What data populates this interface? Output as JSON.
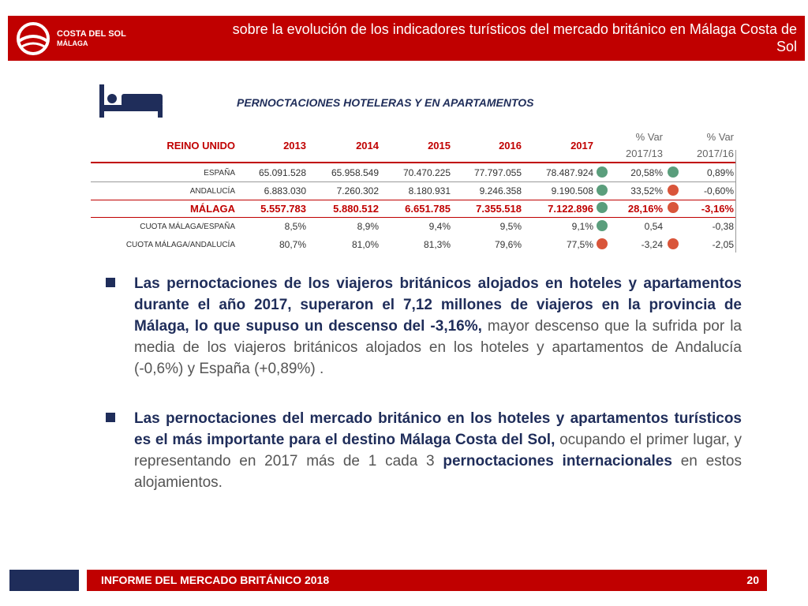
{
  "header": {
    "logo": {
      "line1": "COSTA DEL SOL",
      "line2": "MÁLAGA"
    },
    "title": "sobre la evolución de los indicadores turísticos del mercado británico en Málaga Costa de Sol"
  },
  "table": {
    "title": "PERNOCTACIONES HOTELERAS Y EN APARTAMENTOS",
    "columns": [
      "REINO UNIDO",
      "2013",
      "2014",
      "2015",
      "2016",
      "2017",
      [
        "% Var",
        "2017/13"
      ],
      [
        "% Var",
        "2017/16"
      ]
    ],
    "rows": [
      [
        "ESPAÑA",
        "65.091.528",
        "65.958.549",
        "70.470.225",
        "77.797.055",
        "78.487.924",
        "20,58%",
        "0,89%"
      ],
      [
        "ANDALUCÍA",
        "6.883.030",
        "7.260.302",
        "8.180.931",
        "9.246.358",
        "9.190.508",
        "33,52%",
        "-0,60%"
      ],
      [
        "MÁLAGA",
        "5.557.783",
        "5.880.512",
        "6.651.785",
        "7.355.518",
        "7.122.896",
        "28,16%",
        "-3,16%"
      ],
      [
        "CUOTA MÁLAGA/ESPAÑA",
        "8,5%",
        "8,9%",
        "9,4%",
        "9,5%",
        "9,1%",
        "0,54",
        "-0,38"
      ],
      [
        "CUOTA MÁLAGA/ANDALUCÍA",
        "80,7%",
        "81,0%",
        "81,3%",
        "79,6%",
        "77,5%",
        "-3,24",
        "-2,05"
      ]
    ],
    "indicators": [
      [
        "#5a9e7c",
        "#5a9e7c"
      ],
      [
        "#5a9e7c",
        "#d9553a"
      ],
      [
        "#5a9e7c",
        "#d9553a"
      ],
      [
        "#5a9e7c",
        null
      ],
      [
        "#d9553a",
        "#d9553a"
      ]
    ]
  },
  "bullets": [
    [
      {
        "text": "Las pernoctaciones de los viajeros británicos alojados en hoteles y apartamentos durante el año 2017, superaron el 7,12 millones  de viajeros en la provincia de Málaga, lo que supuso un descenso del -3,16%,",
        "bold": true
      },
      {
        "text": " mayor descenso que la sufrida por la media de los viajeros británicos alojados en los hoteles y apartamentos de Andalucía (-0,6%) y España (+0,89%) .",
        "bold": false
      }
    ],
    [
      {
        "text": "Las pernoctaciones del mercado británico en los hoteles y apartamentos turísticos es el más importante para el destino Málaga Costa del Sol,",
        "bold": true
      },
      {
        "text": " ocupando el primer lugar, y representando en 2017 más de 1 cada 3 ",
        "bold": false
      },
      {
        "text": "pernoctaciones internacionales",
        "bold": true
      },
      {
        "text": " en estos alojamientos.",
        "bold": false
      }
    ]
  ],
  "footer": {
    "text": "INFORME DEL MERCADO BRITÁNICO 2018",
    "page": "20"
  }
}
